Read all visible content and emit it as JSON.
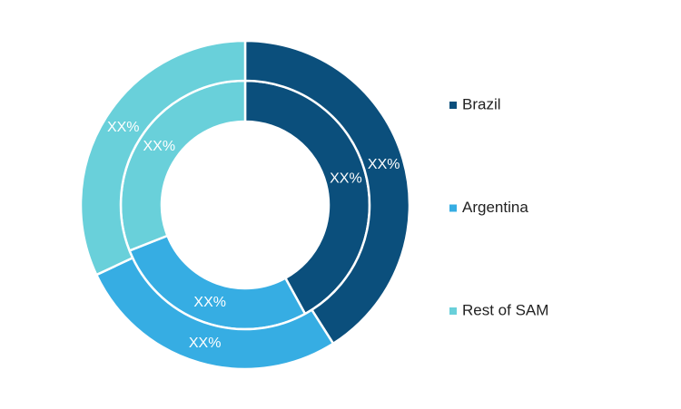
{
  "chart_data": {
    "type": "donut",
    "categories": [
      "Brazil",
      "Argentina",
      "Rest of SAM"
    ],
    "colors": [
      "#0b4f7c",
      "#36ade3",
      "#69d0da"
    ],
    "series": [
      {
        "values": [
          42,
          27,
          31
        ],
        "value_labels": [
          "XX%",
          "XX%",
          "XX%"
        ]
      },
      {
        "values": [
          41,
          27,
          32
        ],
        "value_labels": [
          "XX%",
          "XX%",
          "XX%"
        ]
      }
    ]
  }
}
